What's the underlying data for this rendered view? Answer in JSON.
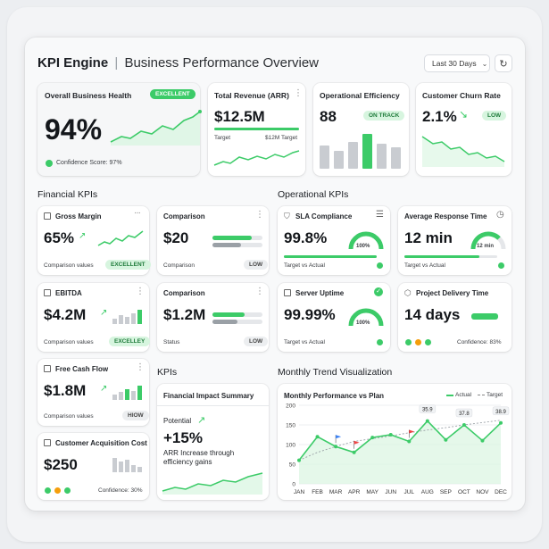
{
  "header": {
    "brand": "KPI Engine",
    "separator": "|",
    "subtitle": "Business Performance Overview",
    "date_range": "Last 30 Days",
    "date_chevron": "⌄",
    "refresh_icon": "↻"
  },
  "colors": {
    "accent": "#3ccb68",
    "accent_light": "#d7f5df",
    "bar_grey": "#c9ccd1",
    "warning": "#f59e0b"
  },
  "top": {
    "health": {
      "title": "Overall Business Health",
      "badge": "EXCELLENT",
      "value": "94%",
      "confidence": "Confidence Score: 97%"
    },
    "revenue": {
      "title": "Total Revenue (ARR)",
      "value": "$12.5M",
      "target_label": "Target",
      "target_value": "$12M Target",
      "progress": 1.0
    },
    "efficiency": {
      "title": "Operational Efficiency",
      "value": "88",
      "badge": "ON TRACK"
    },
    "churn": {
      "title": "Customer Churn Rate",
      "value": "2.1%",
      "badge": "LOW"
    }
  },
  "sections": {
    "financial": "Financial KPIs",
    "operational": "Operational KPIs",
    "kpis": "KPIs",
    "trend": "Monthly Trend Visualization"
  },
  "financial": {
    "gross_margin": {
      "title": "Gross Margin",
      "value": "65%",
      "footer": "Comparison values",
      "badge": "EXCELLENT"
    },
    "comparison1": {
      "title": "Comparison",
      "value": "$20",
      "footer": "Comparison",
      "badge": "LOW"
    },
    "ebitda": {
      "title": "EBITDA",
      "value": "$4.2M",
      "footer": "Comparison values",
      "badge": "EXCELLEY"
    },
    "comparison2": {
      "title": "Comparison",
      "value": "$1.2M",
      "footer": "Status",
      "badge": "LOW"
    },
    "fcf": {
      "title": "Free Cash Flow",
      "value": "$1.8M",
      "footer": "Comparison values",
      "badge": "HIOW"
    },
    "cac": {
      "title": "Customer Acquisition Cost",
      "value": "$250",
      "footer": "Confidence: 30%"
    }
  },
  "impact": {
    "title": "Financial Impact Summary",
    "potential": "Potential",
    "value": "+15%",
    "desc1": "ARR Increase through",
    "desc2": "efficiency gains"
  },
  "operational": {
    "sla": {
      "title": "SLA Compliance",
      "value": "99.8%",
      "gauge": "100%",
      "footer": "Target vs Actual",
      "level": 0.998
    },
    "response": {
      "title": "Average Response Time",
      "value": "12 min",
      "gauge": "12 min",
      "footer": "Target vs Actual"
    },
    "uptime": {
      "title": "Server Uptime",
      "value": "99.99%",
      "gauge": "100%",
      "footer": "Target vs Actual"
    },
    "delivery": {
      "title": "Project Delivery Time",
      "value": "14 days",
      "footer": "Confidence: 83%"
    }
  },
  "chart_data": {
    "type": "line",
    "title": "Monthly Performance vs Plan",
    "categories": [
      "JAN",
      "FEB",
      "MAR",
      "APR",
      "MAY",
      "JUN",
      "JUL",
      "AUG",
      "SEP",
      "OCT",
      "NOV",
      "DEC"
    ],
    "series": [
      {
        "name": "Actual",
        "values": [
          60,
          120,
          95,
          80,
          118,
          125,
          108,
          160,
          112,
          150,
          110,
          155
        ]
      },
      {
        "name": "Target",
        "values": [
          60,
          80,
          95,
          108,
          115,
          122,
          130,
          137,
          143,
          150,
          156,
          162
        ]
      }
    ],
    "annotations": [
      {
        "category": "AUG",
        "label": "35.9"
      },
      {
        "category": "OCT",
        "label": "37.8"
      },
      {
        "category": "DEC",
        "label": "38.9"
      }
    ],
    "ylim": [
      0,
      200
    ],
    "yticks": [
      "200",
      "150",
      "100",
      "50",
      "0"
    ],
    "grid": true,
    "legend": "top-right"
  }
}
